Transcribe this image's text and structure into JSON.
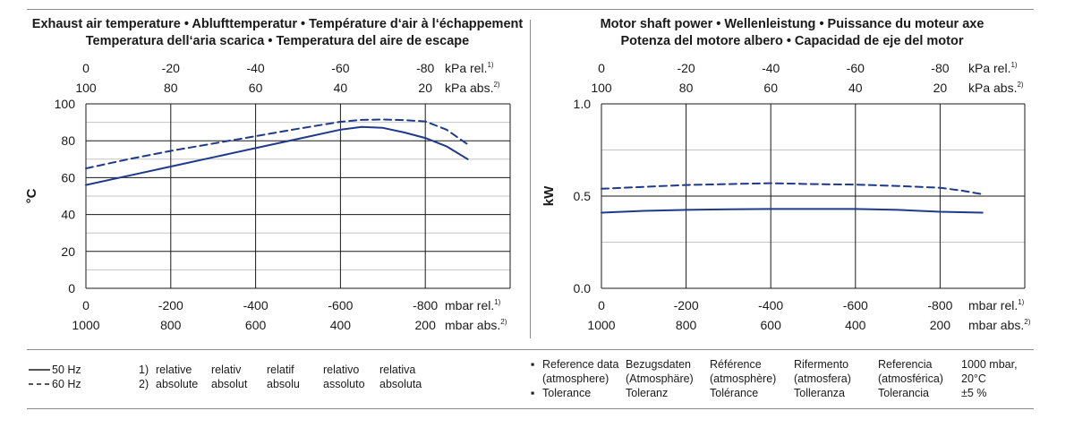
{
  "chart_data": [
    {
      "type": "line",
      "title_line1": "Exhaust air temperature • Ablufttemperatur • Température d‘air à l‘échappement",
      "title_line2": "Temperatura dell‘aria scarica • Temperatura del aire de escape",
      "ylabel": "°C",
      "ylim": [
        0,
        100
      ],
      "yticks": [
        "0",
        "20",
        "40",
        "60",
        "80",
        "100"
      ],
      "x_bottom_rel": [
        "0",
        "-200",
        "-400",
        "-600",
        "-800"
      ],
      "x_bottom_abs": [
        "1000",
        "800",
        "600",
        "400",
        "200"
      ],
      "x_top_rel": [
        "0",
        "-20",
        "-40",
        "-60",
        "-80"
      ],
      "x_top_abs": [
        "100",
        "80",
        "60",
        "40",
        "20"
      ],
      "unit_top_rel": "kPa rel.",
      "unit_top_abs": "kPa abs.",
      "unit_bottom_rel": "mbar rel.",
      "unit_bottom_abs": "mbar abs.",
      "sup_rel": "1)",
      "sup_abs": "2)",
      "xlim": [
        0,
        -1000
      ],
      "series": [
        {
          "name": "50 Hz",
          "style": "solid",
          "x": [
            0,
            -100,
            -200,
            -300,
            -400,
            -500,
            -600,
            -650,
            -700,
            -750,
            -800,
            -850,
            -900
          ],
          "values": [
            56,
            61,
            66,
            71,
            76,
            81,
            86,
            87.5,
            87,
            84.5,
            81.5,
            77,
            70
          ]
        },
        {
          "name": "60 Hz",
          "style": "dashed",
          "x": [
            0,
            -100,
            -200,
            -300,
            -400,
            -500,
            -600,
            -650,
            -700,
            -750,
            -800,
            -850,
            -900
          ],
          "values": [
            65,
            70,
            74.5,
            78.5,
            82.5,
            86.5,
            90.3,
            91.3,
            91.5,
            91.2,
            90.5,
            86,
            78
          ]
        }
      ]
    },
    {
      "type": "line",
      "title_line1": "Motor shaft power • Wellenleistung • Puissance du moteur axe",
      "title_line2": "Potenza del motore albero • Capacidad de eje del motor",
      "ylabel": "kW",
      "ylim": [
        0,
        1.0
      ],
      "yticks": [
        "0.0",
        "0.5",
        "1.0"
      ],
      "x_bottom_rel": [
        "0",
        "-200",
        "-400",
        "-600",
        "-800"
      ],
      "x_bottom_abs": [
        "1000",
        "800",
        "600",
        "400",
        "200"
      ],
      "x_top_rel": [
        "0",
        "-20",
        "-40",
        "-60",
        "-80"
      ],
      "x_top_abs": [
        "100",
        "80",
        "60",
        "40",
        "20"
      ],
      "unit_top_rel": "kPa rel.",
      "unit_top_abs": "kPa abs.",
      "unit_bottom_rel": "mbar rel.",
      "unit_bottom_abs": "mbar abs.",
      "sup_rel": "1)",
      "sup_abs": "2)",
      "xlim": [
        0,
        -1000
      ],
      "series": [
        {
          "name": "50 Hz",
          "style": "solid",
          "x": [
            0,
            -100,
            -200,
            -300,
            -400,
            -500,
            -600,
            -700,
            -800,
            -900
          ],
          "values": [
            0.41,
            0.42,
            0.425,
            0.428,
            0.43,
            0.43,
            0.43,
            0.425,
            0.415,
            0.41
          ]
        },
        {
          "name": "60 Hz",
          "style": "dashed",
          "x": [
            0,
            -100,
            -200,
            -300,
            -400,
            -500,
            -600,
            -700,
            -800,
            -850,
            -900
          ],
          "values": [
            0.54,
            0.55,
            0.56,
            0.565,
            0.57,
            0.565,
            0.562,
            0.555,
            0.545,
            0.53,
            0.51
          ]
        }
      ]
    }
  ],
  "legend": {
    "solid_label": "50 Hz",
    "dashed_label": "60 Hz"
  },
  "notes": {
    "n1": "1)",
    "n2": "2)",
    "relative": [
      "relative",
      "relativ",
      "relatif",
      "relativo",
      "relativa"
    ],
    "absolute": [
      "absolute",
      "absolut",
      "absolu",
      "assoluto",
      "absoluta"
    ]
  },
  "reference": {
    "bullet": "▪",
    "ref_lines": [
      [
        "Reference data",
        "(atmosphere)"
      ],
      [
        "Bezugsdaten",
        "(Atmosphäre)"
      ],
      [
        "Référence",
        "(atmosphère)"
      ],
      [
        "Rifermento",
        "(atmosfera)"
      ],
      [
        "Referencia",
        "(atmosférica)"
      ],
      [
        "1000 mbar,",
        "20°C"
      ]
    ],
    "tol_labels": [
      "Tolerance",
      "Toleranz",
      "Tolérance",
      "Tolleranza",
      "Tolerancia",
      "±5 %"
    ]
  },
  "colors": {
    "line": "#1f3a8a",
    "grid": "#1a1a1a",
    "rule": "#8a8a8a"
  }
}
